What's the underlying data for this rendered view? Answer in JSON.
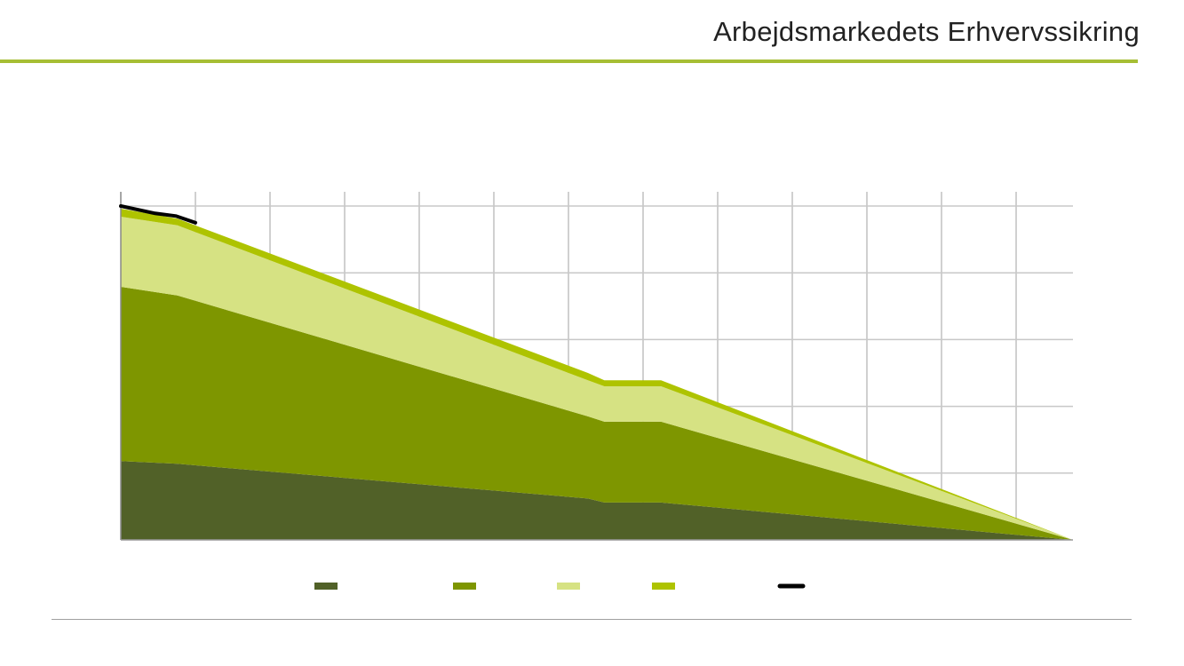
{
  "header": {
    "title": "Arbejdsmarkedets Erhvervssikring",
    "accent_color": "#a6be34"
  },
  "chart_data": {
    "type": "area",
    "stacked": true,
    "title": "",
    "xlabel": "",
    "ylabel": "",
    "grid": true,
    "xlim": [
      0,
      12.76
    ],
    "ylim": [
      0,
      5
    ],
    "x": [
      0,
      0.76,
      6.26,
      6.48,
      7.24,
      12.76
    ],
    "series": [
      {
        "color": "#516128",
        "values": [
          1.18,
          1.14,
          0.62,
          0.56,
          0.56,
          0
        ]
      },
      {
        "color": "#7e9600",
        "values": [
          2.61,
          2.52,
          1.23,
          1.21,
          1.21,
          0
        ]
      },
      {
        "color": "#d6e283",
        "values": [
          1.05,
          1.05,
          0.54,
          0.53,
          0.53,
          0
        ]
      },
      {
        "color": "#aec300",
        "values": [
          0.12,
          0.1,
          0.11,
          0.09,
          0.09,
          0
        ]
      }
    ],
    "line": {
      "color": "#000000",
      "x": [
        0,
        0.46,
        0.74,
        1.0
      ],
      "y": [
        5.0,
        4.89,
        4.85,
        4.75
      ]
    },
    "legend": {
      "placement": "bottom"
    }
  }
}
